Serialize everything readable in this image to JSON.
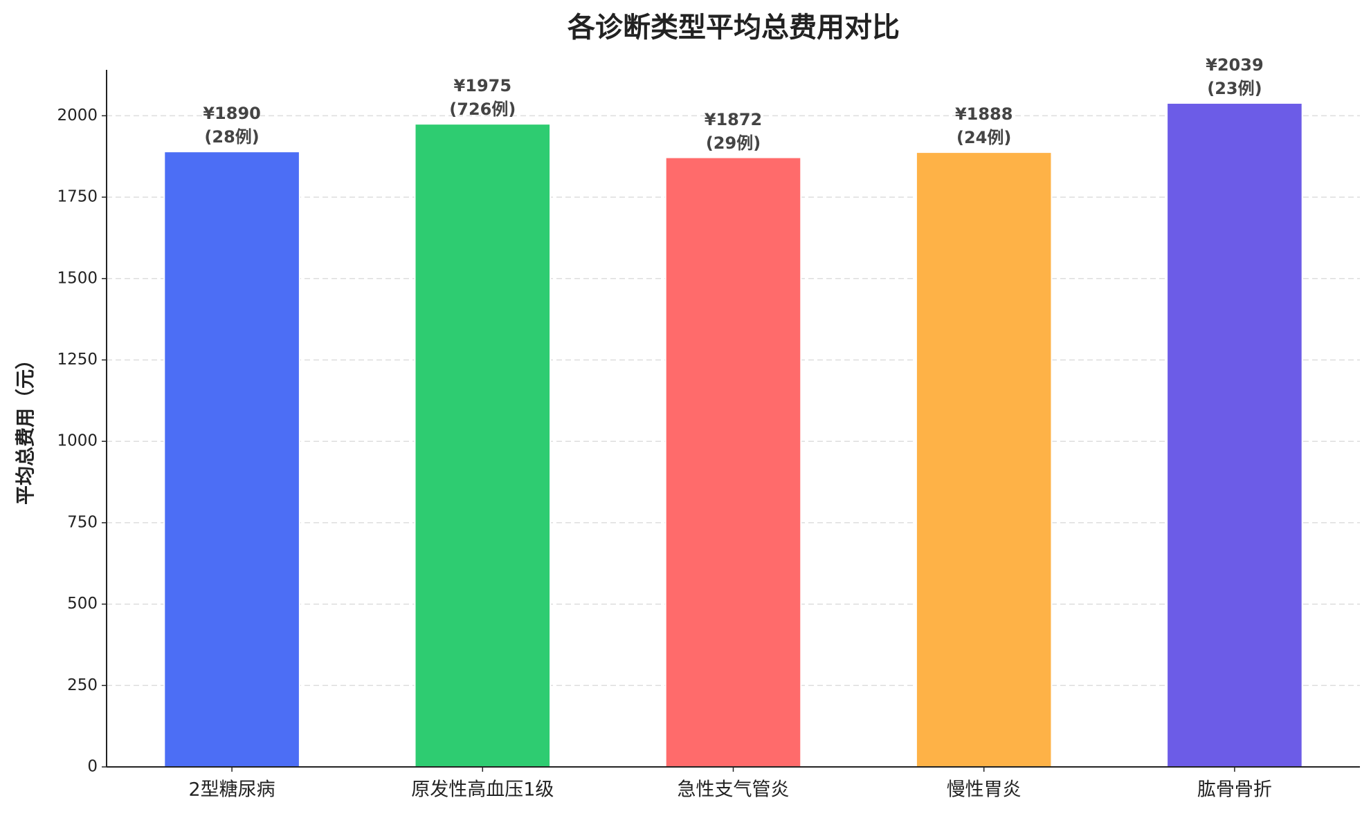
{
  "chart_data": {
    "type": "bar",
    "title": "各诊断类型平均总费用对比",
    "y_label": "平均总费用（元）",
    "categories": [
      "2型糖尿病",
      "原发性高血压1级",
      "急性支气管炎",
      "慢性胃炎",
      "肱骨骨折"
    ],
    "values": [
      1890,
      1975,
      1872,
      1888,
      2039
    ],
    "value_labels": [
      "¥1890\n(28例)",
      "¥1975\n(726例)",
      "¥1872\n(29例)",
      "¥1888\n(24例)",
      "¥2039\n(23例)"
    ],
    "colors": [
      "#4c6ef5",
      "#2ecc71",
      "#ff6b6b",
      "#feb247",
      "#6c5ce7"
    ],
    "ylim": [
      0,
      2141
    ],
    "yticks": [
      0,
      250,
      500,
      750,
      1000,
      1250,
      1500,
      1750,
      2000
    ],
    "grid": true
  }
}
